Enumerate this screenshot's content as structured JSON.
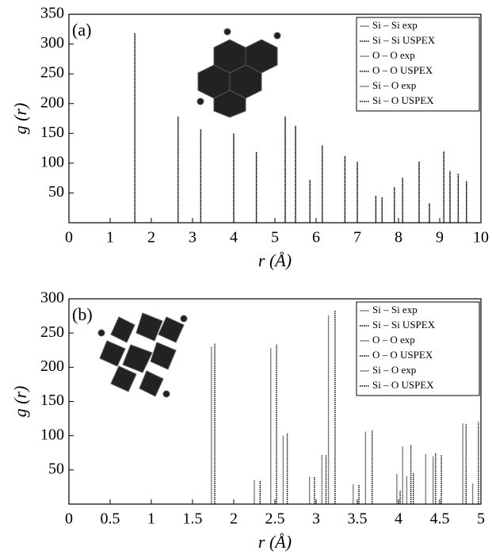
{
  "chart_data": [
    {
      "type": "stem",
      "annotation": "(a)",
      "xlabel": "r (Å)",
      "ylabel": "g (r)",
      "xlim": [
        0,
        10
      ],
      "xticks": [
        0,
        1,
        2,
        3,
        4,
        5,
        6,
        7,
        8,
        9,
        10
      ],
      "ylim": [
        0,
        350
      ],
      "yticks": [
        50,
        100,
        150,
        200,
        250,
        300,
        350
      ],
      "grid": false,
      "series": [
        {
          "name": "Si – Si exp",
          "color": "#808080",
          "dash": "solid",
          "x": [
            3.2,
            5.5,
            6.15,
            8.5,
            9.25
          ],
          "values": [
            157,
            163,
            130,
            103,
            87
          ]
        },
        {
          "name": "Si – Si USPEX",
          "color": "#000000",
          "dash": "dotted",
          "x": [
            3.2,
            5.5,
            6.15,
            8.5,
            9.25
          ],
          "values": [
            157,
            163,
            130,
            103,
            87
          ]
        },
        {
          "name": "O – O exp",
          "color": "#808080",
          "dash": "solid",
          "x": [
            2.65,
            4.55,
            5.25,
            7.0,
            9.1,
            9.65
          ],
          "values": [
            178,
            119,
            178,
            102,
            120,
            70
          ]
        },
        {
          "name": "O – O USPEX",
          "color": "#000000",
          "dash": "dotted",
          "x": [
            2.65,
            4.55,
            5.25,
            7.0,
            9.1,
            9.65
          ],
          "values": [
            178,
            119,
            178,
            102,
            120,
            70
          ]
        },
        {
          "name": "Si – O exp",
          "color": "#808080",
          "dash": "solid",
          "x": [
            1.6,
            4.0,
            5.85,
            6.7,
            7.45,
            7.6,
            7.9,
            8.1,
            8.75,
            9.45
          ],
          "values": [
            318,
            150,
            72,
            112,
            45,
            43,
            60,
            75,
            33,
            82
          ]
        },
        {
          "name": "Si – O USPEX",
          "color": "#000000",
          "dash": "dotted",
          "x": [
            1.6,
            4.0,
            5.85,
            6.7,
            7.45,
            7.6,
            7.9,
            8.1,
            8.75,
            9.45
          ],
          "values": [
            318,
            150,
            72,
            112,
            45,
            43,
            60,
            75,
            33,
            82
          ]
        }
      ]
    },
    {
      "type": "stem",
      "annotation": "(b)",
      "xlabel": "r (Å)",
      "ylabel": "g (r)",
      "xlim": [
        0,
        5
      ],
      "xticks": [
        0,
        0.5,
        1,
        1.5,
        2,
        2.5,
        3,
        3.5,
        4,
        4.5,
        5
      ],
      "ylim": [
        0,
        300
      ],
      "yticks": [
        50,
        100,
        150,
        200,
        250,
        300
      ],
      "grid": false,
      "series": [
        {
          "name": "Si – Si exp",
          "color": "#808080",
          "dash": "solid",
          "x": [
            3.15,
            4.33,
            4.78
          ],
          "values": [
            276,
            73,
            118
          ]
        },
        {
          "name": "Si – Si USPEX",
          "color": "#000000",
          "dash": "dotted",
          "x": [
            3.23,
            4.45,
            4.82
          ],
          "values": [
            283,
            74,
            117
          ]
        },
        {
          "name": "O – O exp",
          "color": "#808080",
          "dash": "solid",
          "x": [
            2.25,
            2.45,
            2.92,
            3.6,
            4.05
          ],
          "values": [
            35,
            228,
            40,
            106,
            84
          ]
        },
        {
          "name": "O – O USPEX",
          "color": "#000000",
          "dash": "dotted",
          "x": [
            2.32,
            2.52,
            2.98,
            3.68,
            4.15
          ],
          "values": [
            35,
            233,
            40,
            108,
            86
          ]
        },
        {
          "name": "Si – O exp",
          "color": "#808080",
          "dash": "solid",
          "x": [
            1.73,
            2.6,
            3.07,
            3.45,
            3.98,
            4.1,
            4.42,
            4.9
          ],
          "values": [
            230,
            100,
            72,
            29,
            44,
            41,
            70,
            30
          ]
        },
        {
          "name": "Si – O USPEX",
          "color": "#000000",
          "dash": "dotted",
          "x": [
            1.77,
            2.65,
            3.12,
            3.52,
            4.02,
            4.18,
            4.52,
            4.97
          ],
          "values": [
            235,
            103,
            72,
            29,
            20,
            45,
            72,
            120
          ]
        }
      ]
    }
  ]
}
